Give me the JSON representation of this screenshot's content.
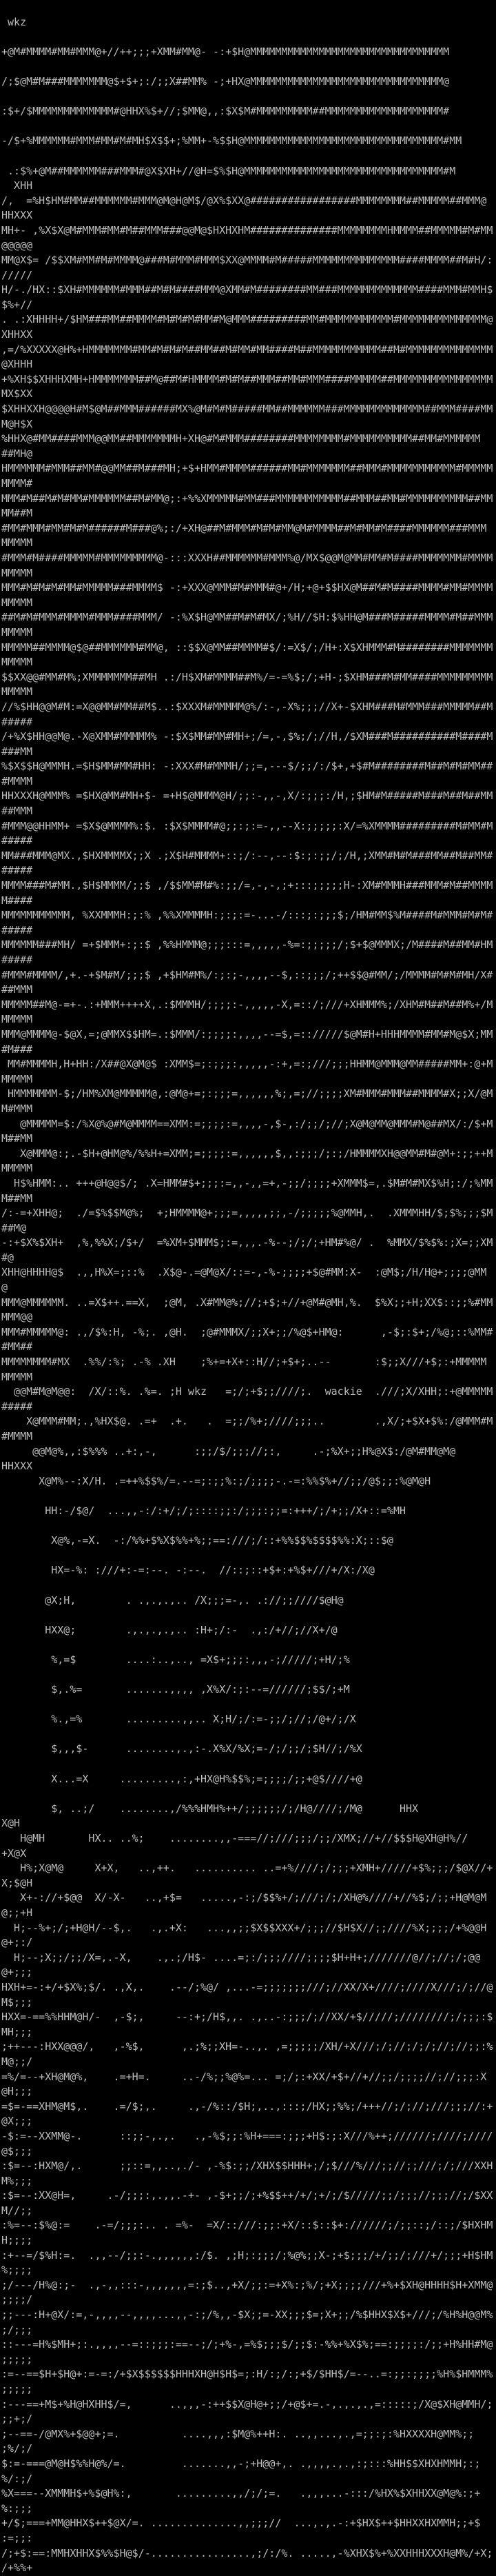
{
  "terminal": {
    "background_color": "#000000",
    "foreground_color": "#bcbcbc",
    "prompt_text": "wkz",
    "embedded_words": [
      "wkz",
      "wackie"
    ],
    "rows": [
      "",
      " wkz",
      "",
      "+@M#MMMM#MM#MMM@+//++;;;+XMM#MM@- -:+$H@MMMMMMMMMMMMMMMMMMMMMMMMMMMMMMMM",
      "",
      "/;$@M#M###MMMMMMM@$+$+;:/;;X##MM% -;+HX@MMMMMMMMMMMMMMMMMMMMMMMMMMMMMMM@",
      "",
      ":$+/$MMMMMMMMMMMMM#@HHX%$+//;$MM@,,:$X$M#MMMMMMMMM##MMMMMMMMMMMMMMMMMMM#",
      "",
      "-/$+%MMMMMM#MMM#MM#M#MH$X$$+;%MM+-%$$H@MMMMMMMMMMMMMMMMMMMMMMMMMMMMMMMM#MM",
      "",
      " .:$%+@M##MMMMMM###MMM#@X$XH+//@H=$%$H@MMMMMMMMMMMMMMMMMMMMMMMMMMMMMMMM#M",
      "  XHH",
      "/,  =%H$HM#MM##MMMMMM#MMM@M@H@M$/@X%$XX@#################MMMMMMMM##MMMMM##MMM@",
      "HHXXX",
      "MH+- ,%X$X@M#MMM#MM#M##MMM###@@M@$HXHXHM##############MMMMMMMMHMMMM##MMMMM#M#MM",
      "@@@@@",
      "MM@X$= /$$XM#MM#M#MMMM@###M#MMM#MMM$XX@MMMM#M#####MMMMMMMMMMMMMM####MMMM##M#H/:",
      "/////",
      "H/-./HX::$XH#MMMMMM#MMM##M#M####MMM@XMM#M########MM###MMMMMMMMMMMMM####MMM#MMH$",
      "$%+//",
      ". .:XHHHH+/$HM###MM##MMMM#M#M#M#MM#M@MMM#########MM#MMMMMMMMMMM#MMMMMMMMMMMMMM@",
      "XHHXX",
      ",=/%XXXXX@H%+HMMMMMMM#MM#M#M#M##MM##M#MM#MM####M##MMMMMMMMMMM##M#MMMMMMMMMMMMMM",
      "@XHHH",
      "+%XH$$XHHHXMH+HMMMMMMM##M@##M#HMMMM#M#M##MMM##MM#MMM####MMMMM##MMMMMMMMMMMMMMMM",
      "MX$XX",
      "$XHHXXH@@@@H#M$@M##MMM######MX%@M#M#M#####MM##MMMMMM###MMMMMMMMMMMMM##MMM####MM",
      "M@H$X",
      "%HHX@#MM####MMM@@MM##MMMMMMMH+XH@#M#MMM########MMMMMMMM#MMMMMMMMMM##MM#MMMMMM",
      "##MH@",
      "HMMMMMM#MMM##MM#@@MM##M###MH;+$+HMM#MMMM######MM#MMMMMMM##MMM#MMMMMMMMMMM#MMMMM",
      "MMMM#",
      "MMM#M##M#M#MM#MMMMMM##M#MM@;:+%%XMMMMM#MM###MMMMMMMMMMM##MMM##MM#MMMMMMMMMM##MM",
      "MM##M",
      "#MM#MMM#MM#M#M######M###@%;:/+XH@##M#MMM#M#M#MM@M#MMMM##M#MM#M####MMMMMM###MMM",
      "MMMMM",
      "#MMM#M####MMMMM#MMMMMMMMM@-:::XXXH##MMMMMM#MMM%@/MX$@@M@MM#MM#M####MMMMMMM#MMMM",
      "MMMMM",
      "MMM#M#M#M#MM#MMMMM###MMMM$ -:+XXX@MMM#M#MMM#@+/H;+@+$$HX@M##M#M####MMMM#MM#MMMM",
      "MMMMM",
      "##M#M#MMM#MMMM#MMM####MMM/ -:%X$H@MM##M#M#MX/;%H//$H:$%HH@M###M#####MMMM#M##MMM",
      "MMMMM",
      "MMMMM##MMMM@$@##MMMMMM#MM@, ::$$X@MM##MMMM#$/:=X$/;/H+:X$XHMMM#M########MMMMMMM",
      "MMMMM",
      "$$XX@@#MM#M%;XMMMMMMM##MH .:/H$XM#MMMM##M%/=-=%$;/;+H-;$XHM###M#MM####MMMMMMMMM",
      "MMMMM",
      "//%$HH@@M#M:=X@@MM#MM##M$..:$XXXM#MMMMM@%/:-,-X%;;;//X+-$XHM###M#MMM###MMMMM##M",
      "#####",
      "/+%X$HH@@M@.-X@XMM#MMMMM% -:$X$MM#MM#MH+;/=,-,$%;/;//H,/$XM###M##########M####M",
      "###MM",
      "%$X$$H@MMMH.=$H$MM#MM#HH: -:XXX#M#MMMH/;;=,---$/;;/:/$+,+$#M########M##M#M#MM##",
      "#MMMM",
      "HHXXXH@MMM% =$HX@MM#MH+$- =+H$@MMMM@H/;;:-,,-,X/:;;;:/H,;$HM#M#####M###M##M##MM",
      "##MMM",
      "#MMM@@HHMM+ =$X$@MMMM%:$. :$X$MMMM#@;;:;:=-,,--X:;;;;;:X/=%XMMMM#########M#MM#M",
      "#####",
      "MM###MMM@MX.,$HXMMMMX;;X .;X$H#MMMM+::;/:--,--:$:;:;;/;/H,;XMM#M#M###MM##M##MM#",
      "#####",
      "MMMM###M#MM.,$H$MMMM/;;$ ,/$$MM#M#%:;;/=,-,-,;+:::;;;;;H-:XM#MMMH###MMM#M##MMMM",
      "M####",
      "MMMMMMMMMMM, %XXMMMH:;:% ,%%XMMMMH:;:;:=-...-/:::;:;;;$;/HM#MM$%M####M#MMM#M#M#",
      "#####",
      "MMMMMM###MH/ =+$MMM+:;:$ ,%%HMMM@;;;:::=,,,,,-%=:;;;;;/;$+$@MMMX;/M####M##MM#HM",
      "#####",
      "#MMM#MMMM/,+.-+$M#M/;;;$ ,+$HM#M%/:;:;-,,,,--$,::;;;/;++$$@#MM/;/MMMM#M#M#MH/X#",
      "##MMM",
      "MMMMM##M@-=+-.:+MMM++++X,.:$MMMH/;;;;:-,,,,,-X,=::/;///+XHMMM%;/XHM#M##M##M%+/M",
      "MMMMM",
      "MMM@MMMM@-$@X,=;@MMX$$HM=.:$MMM/:;;;;:,,,,--=$,=:://///$@M#H+HHHMMMM#MM#M@$X;MM",
      "#M###",
      " MM#MMMMH,H+HH:/X##@X@M@$ :XMM$=;:;;;:,,,,,-:+,=:;///;;;HHMM@MMM@MM#####MM+:@+M",
      "MMMMM",
      " HMMMMMMM-$;/HM%XM@MMMMM@,:@M@+=;:;;;=,,,,,,%;,=;//;;;;XM#MMM#MMM##MMMM#X;;X/@M",
      "M#MMM",
      "   @MMMMM=$:/%X@%@#M@MMMM==XMM:=;;;;:=,,,,-,$-,:/;;/;//;X@M@MM@MMM#M@##MX/:/$+M",
      "M##MM",
      "   X@MMM@:;.-$H+@HM@%/%%H+=XMM;=;;;;:=,,,,,,$,,:;;;/;:;/HMMMMXH@@MM#M#@M+:;;++M",
      "MMMMM",
      "  H$%HMM:.. +++@H@@$/; .X=HMM#$+;;;:=,,-,,=+,-;;/;;;;+XMMM$=,.$M#M#MX$%H;:/;%MM",
      "M##MM",
      "/:-=+XHH@;  ./=$%$$M@%;  +;HMMMM@+;;;=,,,,,;;,-/;;;;;%@MMH,.  .XMMMHH/$;$%;;;$M",
      "##M@",
      "-:+$X%$XH+  ,%,%%X;/$+/  =%XM+$MMM$;:=,,,.-%--;/;/;+HM#%@/ .  %MMX/$%$%:;X=;;XM",
      "#@",
      "XHH@HHHH@$  .,,H%X=;::%  .X$@-.=@M@X/::=-,-%-;;;;+$@#MM:X-  :@M$;/H/H@+;;;;@MM",
      "@",
      "MMM@MMMMMM. ..=X$++.==X,  ;@M, .X#MM@%;//;+$;+//+@M#@MH,%.  $%X;;+H;XX$::;;%#MM",
      "MMM@@",
      "MMM#MMMMM@: .,/$%:H, -%;. ,@H.  ;@#MMMX/;;X+;;/%@$+HM@:      ,-$;:$+;/%@;::%MM#",
      "#MM##",
      "MMMMMMMM#MX  .%%/:%; .-% .XH    ;%+=+X+::H//;+$+;..--       :$;;X///+$;:+MMMMM",
      "MMMMM",
      "  @@M#M@M@@:  /X/::%. .%=. ;H wkz   =;/;+$;;////;.  wackie  .///;X/XHH;:+@MMMMM",
      "#####",
      "    X@MMM#MM;.,%HX$@. .=+  .+.   .  =;;/%+;////;;;..        .,X/;+$X+$%:/@MMM#M",
      "#MMMM",
      "     @@M@%,,:$%%% ..+:,-,      :;;/$/;;;//;:,     .-;%X+;;H%@X$:/@M#MM@M@",
      "HHXXX",
      "      X@M%--:X/H. .=++%$$%/=.--=;:;;%:;/;;;;-.-=:%%$%+//;;/@$;;:%@M@H",
      "",
      "       HH:-/$@/  ...,,-:/:+/;/;::::;;:/;;;:;;=:+++/;/+;;/X+::=%MH",
      "",
      "        X@%,-=X.  -:/%%+$%X$%%+%;;==:///;/::+%%$$%$$$$%%:X;::$@",
      "",
      "        HX=-%: :///+:-=:--. -:--.  //::;::+$+:+%$+///+/X:/X@",
      "",
      "       @X;H,        . .,.,.,.. /X;;;=-,. .://;;////$@H@",
      "",
      "       HXX@;        .,.,.,.,.. :H+;/:-  .,:/+//;//X+/@",
      "",
      "        %,=$        ....:..,.., =X$+;;;:,,,-;/////;+H/;%",
      "",
      "        $,.%=       .......,,,, ,X%X/:;:--=//////;$$/;+M",
      "",
      "        %.,=%       .........,,.. X;H/;/:=-;;/;//;/@+/;/X",
      "",
      "        $,,,$-      ........,.,:-.X%X/%X;=-/;/;;/;$H//;/%X",
      "",
      "        X...=X     .........,:,+HX@H%$$%;=;;;;/;;+@$////+@",
      "",
      "        $, ..;/    ........,/%%%HMH%++/;;;;;;/;/H@////;/M@      HHX",
      "X@H",
      "   H@MH       HX.. ..%;    ........,,-===//;///;;;/;;/XMX;//+//$$$H@XH@H%//",
      "+X@X",
      "   H%;X@M@     X+X,   ..,++.   .......... ..=+%////;/;;;+XMH+/////+$%;;;/$@X//+",
      "X;$@H",
      "   X+-://+$@@  X/-X-   ..,+$=   .....,-:;/$$%+/;///;/;/XH@%////+//%$;/;;+H@M@M",
      "@;;+H",
      "  H;--%+;/;+H@H/--$,.   .,.+X:   ...,,;;$X$$XXX+/;;;//$H$X//;;////%X;;;;/+%@@H",
      "@+;:/",
      "  H;--;X;;/;;/X=,.-X,    .,.;/H$- ....=;:/;;;////;;;;$H+H+;///////@//;//;/;@@",
      "@+;;;",
      "HXH+=-:+/+$X%;$/. .,X,.    .--/;%@/ ,...-=;;;;;;;///;//XX/X+////;////X///;/;//@",
      "M$;;;",
      "HXX=-==%%HHM@H/-  ,-$;,     --:+;/H$,,. .,..-:;;;/;//XX/+$/////;////////;/;;;:$",
      "MH;;;",
      ";++---:HXX@@@/,   ,-%$,      ,.;%;;XH=-..,. ,=;;;;;/XH/+X///;/;//;/;/;//;//;;:%",
      "M@;;/",
      "=%/=--+XH@M@%,    .=+H=.     ..-/%;;%@%=... =;/;:+XX/+$+//+//;;/;;;;//;//;;;:X",
      "@H;;;",
      "=$=-==XHM@M$,.    .=/$;,.     .,-/%::/$H;,..,:::;/HX;;%%;/+++//;/;//;///;;;//:+",
      "@X;;;",
      "-$:=--XXMM@-.      ::;;-,.,.   .,-%$;;:%H+===:;;;+H$:;:X///%++;//////;////;////",
      "@$;;;",
      ":$=--:HXM@/,.      ;;::=,,..,./- ,-%$:;;/XHX$$HHH+;/;$///%///;;//;;///;/;///XXH",
      "M%;;;",
      ":$=--:XX@H=,     .-/;;;:,.,,.-+- ,-$+;;/;+%$$++/+/;+/;/$/////;;/;;;//;;;//;/$XX",
      "M//;;",
      ":%=--:$%@:=    .-=/;;;:.. . =%-  =X/::///:;;:+X/::$::$+://////;/;;::;/::;/$HXHM",
      "H;;;;",
      ":+--=/$%H:=.  .,,--/;;:-.,,,,,,:/$. ,;H;:;;;/;%@%;;X-;+$;;;/+/;;/;///+/;;;+H$HM",
      "%;;;;",
      ";/---/H%@:;-  .,-,,:::-,,,,,,,=:;$..,+X/;;:=+X%:;%/;+X;;;;///+%+$XH@HHHH$H+XMM@",
      ";;;;/",
      ";;---:H+@X/:=,-,,,,--,,,,...,,-:;/%,,-$X;;=-XX;;;$=;X+;;/%$HHX$X$+///;/%H%H@@M%",
      ";/;;;",
      "::---=H%$MH+;:.,,,,--=::;;;:==--;/;+%-,=%$;;;$/;;$:-%%+%X$%;==:;;;;:/;;+H%HH#M@",
      ";;;;;",
      ":=--==$H+$H@+:=-=:/+$X$$$$$$HHHXH@H$H$=;:H/:;/:;+$/$HH$/=--..=:;;:;;;;%H%$HMMM%",
      ";;;;;",
      ":---==+M$+%H@HXHH$/=,      ..,,,-:++$$X@H@+;;/+@$+=.-,.,.,.,=:::::;/X@$XH@MMH/;",
      ";;+;/",
      ";--==-/@MX%+$@@+;=.          ....,,,:$M@%++H:. ..,,...,.,=;;:;:%HXXXXH@MM%;;",
      ";%/;/",
      "$:=-===@M@H$%%H@%/=.         .......,,-;+H@@+,. .,,,,.,.,:;:::%HH$$XHXHMMH;:;",
      "%/:;/",
      "%X===--XMMMH$+%$@H%:,       .........,,/;/;=.   .,,,...-:::/%HX%$XHHXX@M@%:;+",
      "%:;;;",
      "+/$;===+MM@HHX$++$@X/=. ..............,,;;;//  ...,.,.-:+$HX$++$HHXXHXMMH;;+$",
      ":=;;:",
      "/;+$:==:MMHXHHX$%%$H@$/-................,;/:/%. .....,-%XHX$%+%XXHHHXXXH@M%/+X;",
      "/+%%+"
    ]
  }
}
